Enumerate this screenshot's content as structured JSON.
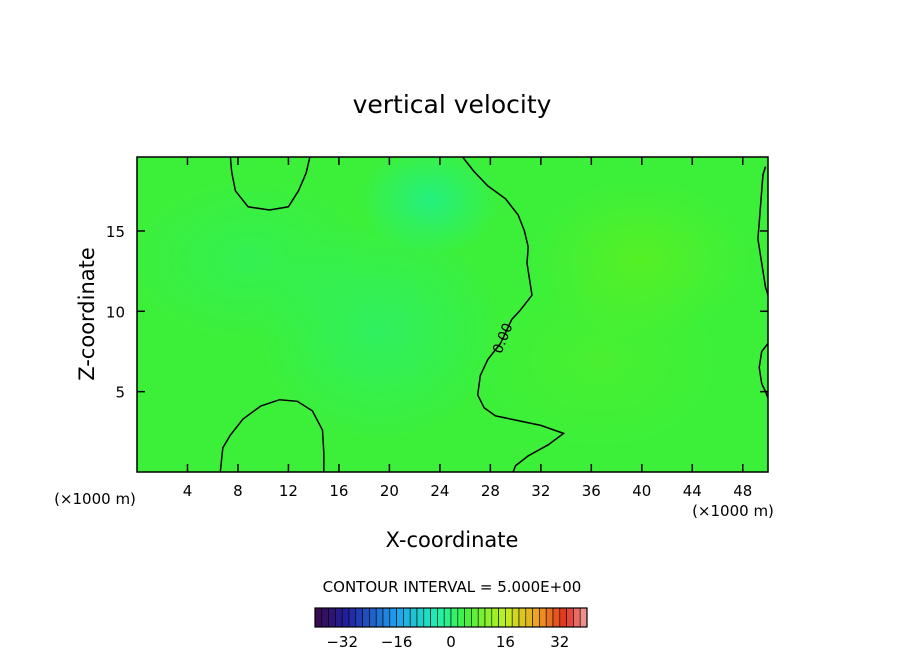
{
  "chart_data": {
    "type": "contour",
    "title": "vertical velocity",
    "xlabel": "X-coordinate",
    "ylabel": "Z-coordinate",
    "x_unit_left": "(×1000 m)",
    "x_unit_right": "(×1000 m)",
    "xlim": [
      0,
      50
    ],
    "ylim": [
      0,
      19.6
    ],
    "x_ticks": [
      4,
      8,
      12,
      16,
      20,
      24,
      28,
      32,
      36,
      40,
      44,
      48
    ],
    "y_ticks": [
      5,
      10,
      15
    ],
    "contour_label": "0.00",
    "contour_interval_text": "CONTOUR INTERVAL = 5.000E+00",
    "colorbar": {
      "min": -40,
      "max": 40,
      "ticks": [
        -32,
        -16,
        0,
        16,
        32
      ],
      "segments": 40
    },
    "zero_contours": [
      [
        [
          7.4,
          19.6
        ],
        [
          7.5,
          18.7
        ],
        [
          7.8,
          17.5
        ],
        [
          8.8,
          16.5
        ],
        [
          10.5,
          16.3
        ],
        [
          12.0,
          16.5
        ],
        [
          12.8,
          17.5
        ],
        [
          13.4,
          18.6
        ],
        [
          13.7,
          19.6
        ]
      ],
      [
        [
          25.8,
          19.6
        ],
        [
          26.7,
          18.7
        ],
        [
          27.8,
          17.8
        ],
        [
          29.2,
          17.0
        ],
        [
          30.2,
          16.0
        ],
        [
          30.7,
          15.0
        ],
        [
          31.0,
          14.0
        ],
        [
          30.9,
          13.0
        ],
        [
          31.3,
          11.0
        ],
        [
          30.3,
          10.0
        ],
        [
          29.7,
          9.5
        ],
        [
          29.4,
          9.0
        ],
        [
          28.8,
          8.0
        ],
        [
          27.8,
          7.0
        ],
        [
          27.2,
          6.0
        ],
        [
          27.0,
          4.8
        ],
        [
          27.5,
          4.0
        ],
        [
          28.4,
          3.5
        ],
        [
          30.2,
          3.2
        ],
        [
          32.0,
          2.9
        ],
        [
          33.8,
          2.4
        ],
        [
          32.6,
          1.7
        ],
        [
          31.0,
          1.0
        ],
        [
          30.0,
          0.4
        ],
        [
          29.8,
          0
        ]
      ],
      [
        [
          6.6,
          0
        ],
        [
          6.8,
          1.5
        ],
        [
          7.4,
          2.3
        ],
        [
          8.4,
          3.3
        ],
        [
          9.8,
          4.1
        ],
        [
          11.3,
          4.5
        ],
        [
          12.7,
          4.4
        ],
        [
          13.9,
          3.8
        ],
        [
          14.7,
          2.6
        ],
        [
          14.8,
          1.2
        ],
        [
          14.8,
          0
        ]
      ],
      [
        [
          49.8,
          19.0
        ],
        [
          49.6,
          18.5
        ],
        [
          49.5,
          17.5
        ],
        [
          49.3,
          15.5
        ],
        [
          49.2,
          14.5
        ],
        [
          49.5,
          13.0
        ],
        [
          49.8,
          11.5
        ],
        [
          50,
          11.0
        ]
      ],
      [
        [
          50,
          8.0
        ],
        [
          49.5,
          7.5
        ],
        [
          49.3,
          6.5
        ],
        [
          49.5,
          5.5
        ],
        [
          49.8,
          5.0
        ],
        [
          50,
          4.6
        ]
      ]
    ]
  }
}
